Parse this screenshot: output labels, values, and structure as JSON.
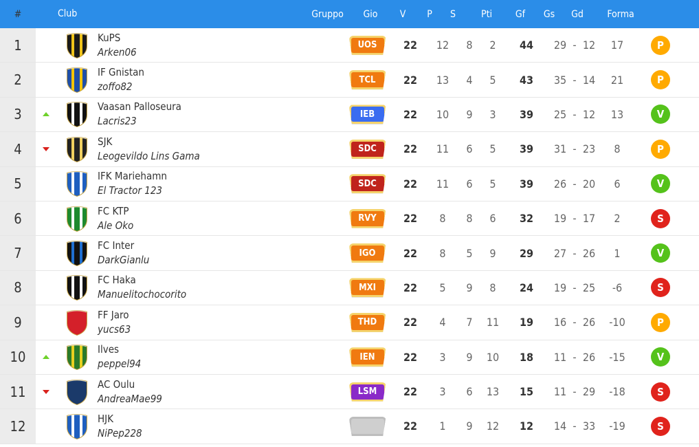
{
  "header": {
    "pos": "#",
    "club": "Club",
    "gruppo": "Gruppo",
    "gio": "Gio",
    "v": "V",
    "p": "P",
    "s": "S",
    "pti": "Pti",
    "gf": "Gf",
    "gs": "Gs",
    "gd": "Gd",
    "forma": "Forma"
  },
  "colors": {
    "header_bg": "#2b8de8",
    "forma_P": "#ffaa00",
    "forma_V": "#55c21b",
    "forma_S": "#e0231c"
  },
  "rows": [
    {
      "pos": "1",
      "trend": "",
      "name": "KuPS",
      "user": "Arken06",
      "group": "UOS",
      "group_color": "#f07a10",
      "gio": "22",
      "v": "12",
      "p": "8",
      "s": "2",
      "pti": "44",
      "gf": "29",
      "dash": "-",
      "gs": "12",
      "gd": "17",
      "forma": "P",
      "shield_main": "#1a1a1a",
      "shield_accent": "#f0c419"
    },
    {
      "pos": "2",
      "trend": "",
      "name": "IF Gnistan",
      "user": "zoffo82",
      "group": "TCL",
      "group_color": "#f07a10",
      "gio": "22",
      "v": "13",
      "p": "4",
      "s": "5",
      "pti": "43",
      "gf": "35",
      "dash": "-",
      "gs": "14",
      "gd": "21",
      "forma": "P",
      "shield_main": "#1f4fa8",
      "shield_accent": "#f5c400"
    },
    {
      "pos": "3",
      "trend": "up",
      "name": "Vaasan Palloseura",
      "user": "Lacris23",
      "group": "IEB",
      "group_color": "#3a6cf0",
      "gio": "22",
      "v": "10",
      "p": "9",
      "s": "3",
      "pti": "39",
      "gf": "25",
      "dash": "-",
      "gs": "12",
      "gd": "13",
      "forma": "V",
      "shield_main": "#111111",
      "shield_accent": "#ffffff"
    },
    {
      "pos": "4",
      "trend": "down",
      "name": "SJK",
      "user": "Leogevildo Lins Gama",
      "group": "SDC",
      "group_color": "#c0241c",
      "gio": "22",
      "v": "11",
      "p": "6",
      "s": "5",
      "pti": "39",
      "gf": "31",
      "dash": "-",
      "gs": "23",
      "gd": "8",
      "forma": "P",
      "shield_main": "#222222",
      "shield_accent": "#f0d060"
    },
    {
      "pos": "5",
      "trend": "",
      "name": "IFK Mariehamn",
      "user": "El Tractor 123",
      "group": "SDC",
      "group_color": "#c0241c",
      "gio": "22",
      "v": "11",
      "p": "6",
      "s": "5",
      "pti": "39",
      "gf": "26",
      "dash": "-",
      "gs": "20",
      "gd": "6",
      "forma": "V",
      "shield_main": "#1f5fbf",
      "shield_accent": "#ffffff"
    },
    {
      "pos": "6",
      "trend": "",
      "name": "FC KTP",
      "user": "Ale Oko",
      "group": "RVY",
      "group_color": "#f07a10",
      "gio": "22",
      "v": "8",
      "p": "8",
      "s": "6",
      "pti": "32",
      "gf": "19",
      "dash": "-",
      "gs": "17",
      "gd": "2",
      "forma": "S",
      "shield_main": "#1e8a2e",
      "shield_accent": "#ffffff"
    },
    {
      "pos": "7",
      "trend": "",
      "name": "FC Inter",
      "user": "DarkGianlu",
      "group": "IGO",
      "group_color": "#f07a10",
      "gio": "22",
      "v": "8",
      "p": "5",
      "s": "9",
      "pti": "29",
      "gf": "27",
      "dash": "-",
      "gs": "26",
      "gd": "1",
      "forma": "V",
      "shield_main": "#111111",
      "shield_accent": "#1f6fd0"
    },
    {
      "pos": "8",
      "trend": "",
      "name": "FC Haka",
      "user": "Manuelitochocorito",
      "group": "MXI",
      "group_color": "#f07a10",
      "gio": "22",
      "v": "5",
      "p": "9",
      "s": "8",
      "pti": "24",
      "gf": "19",
      "dash": "-",
      "gs": "25",
      "gd": "-6",
      "forma": "S",
      "shield_main": "#111111",
      "shield_accent": "#ffffff"
    },
    {
      "pos": "9",
      "trend": "",
      "name": "FF Jaro",
      "user": "yucs63",
      "group": "THD",
      "group_color": "#f07a10",
      "gio": "22",
      "v": "4",
      "p": "7",
      "s": "11",
      "pti": "19",
      "gf": "16",
      "dash": "-",
      "gs": "26",
      "gd": "-10",
      "forma": "P",
      "shield_main": "#d4202a",
      "shield_accent": "#d4202a"
    },
    {
      "pos": "10",
      "trend": "up",
      "name": "Ilves",
      "user": "peppel94",
      "group": "IEN",
      "group_color": "#f07a10",
      "gio": "22",
      "v": "3",
      "p": "9",
      "s": "10",
      "pti": "18",
      "gf": "11",
      "dash": "-",
      "gs": "26",
      "gd": "-15",
      "forma": "V",
      "shield_main": "#2a7a2a",
      "shield_accent": "#e8d020"
    },
    {
      "pos": "11",
      "trend": "down",
      "name": "AC Oulu",
      "user": "AndreaMae99",
      "group": "LSM",
      "group_color": "#8a2ac8",
      "gio": "22",
      "v": "3",
      "p": "6",
      "s": "13",
      "pti": "15",
      "gf": "11",
      "dash": "-",
      "gs": "29",
      "gd": "-18",
      "forma": "S",
      "shield_main": "#1b3a6a",
      "shield_accent": "#1b3a6a"
    },
    {
      "pos": "12",
      "trend": "",
      "name": "HJK",
      "user": "NiPep228",
      "group": "",
      "group_color": "#cfcfcf",
      "gio": "22",
      "v": "1",
      "p": "9",
      "s": "12",
      "pti": "12",
      "gf": "14",
      "dash": "-",
      "gs": "33",
      "gd": "-19",
      "forma": "S",
      "shield_main": "#1f5fbf",
      "shield_accent": "#ffffff"
    }
  ]
}
